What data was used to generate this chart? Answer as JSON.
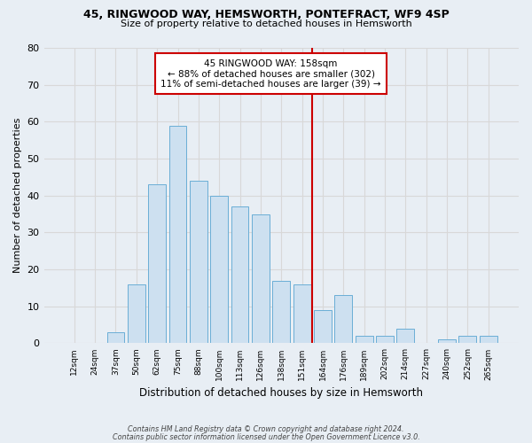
{
  "title1": "45, RINGWOOD WAY, HEMSWORTH, PONTEFRACT, WF9 4SP",
  "title2": "Size of property relative to detached houses in Hemsworth",
  "xlabel": "Distribution of detached houses by size in Hemsworth",
  "ylabel": "Number of detached properties",
  "bar_labels": [
    "12sqm",
    "24sqm",
    "37sqm",
    "50sqm",
    "62sqm",
    "75sqm",
    "88sqm",
    "100sqm",
    "113sqm",
    "126sqm",
    "138sqm",
    "151sqm",
    "164sqm",
    "176sqm",
    "189sqm",
    "202sqm",
    "214sqm",
    "227sqm",
    "240sqm",
    "252sqm",
    "265sqm"
  ],
  "bar_values": [
    0,
    0,
    3,
    16,
    43,
    59,
    44,
    40,
    37,
    35,
    17,
    16,
    9,
    13,
    2,
    2,
    4,
    0,
    1,
    2,
    2
  ],
  "bar_color": "#cde0f0",
  "bar_edge_color": "#6aaed6",
  "grid_color": "#d8d8d8",
  "vline_x": 11.5,
  "vline_color": "#cc0000",
  "annotation_text": "45 RINGWOOD WAY: 158sqm\n← 88% of detached houses are smaller (302)\n11% of semi-detached houses are larger (39) →",
  "annotation_box_color": "#ffffff",
  "annotation_edge_color": "#cc0000",
  "ylim": [
    0,
    80
  ],
  "yticks": [
    0,
    10,
    20,
    30,
    40,
    50,
    60,
    70,
    80
  ],
  "footer1": "Contains HM Land Registry data © Crown copyright and database right 2024.",
  "footer2": "Contains public sector information licensed under the Open Government Licence v3.0.",
  "bg_color": "#e8eef4",
  "plot_bg_color": "#e8eef4"
}
